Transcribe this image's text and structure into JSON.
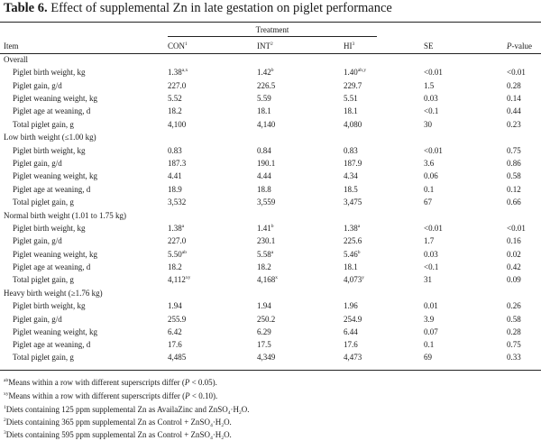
{
  "title": {
    "bold": "Table 6.",
    "text": " Effect of supplemental Zn in late gestation on piglet performance"
  },
  "header": {
    "treatment": "Treatment",
    "item": "Item",
    "con": "CON",
    "con_sup": "1",
    "int": "INT",
    "int_sup": "2",
    "hi": "HI",
    "hi_sup": "3",
    "se": "SE",
    "p_italic": "P",
    "p_rest": "-value"
  },
  "sections": [
    {
      "label": "Overall",
      "rows": [
        {
          "item": "Piglet birth weight, kg",
          "con": "1.38",
          "con_s": "a,x",
          "int": "1.42",
          "int_s": "b",
          "hi": "1.40",
          "hi_s": "ab,y",
          "se": "<0.01",
          "p": "<0.01"
        },
        {
          "item": "Piglet gain, g/d",
          "con": "227.0",
          "con_s": "",
          "int": "226.5",
          "int_s": "",
          "hi": "229.7",
          "hi_s": "",
          "se": "1.5",
          "p": "0.28"
        },
        {
          "item": "Piglet weaning weight, kg",
          "con": "5.52",
          "con_s": "",
          "int": "5.59",
          "int_s": "",
          "hi": "5.51",
          "hi_s": "",
          "se": "0.03",
          "p": "0.14"
        },
        {
          "item": "Piglet age at weaning, d",
          "con": "18.2",
          "con_s": "",
          "int": "18.1",
          "int_s": "",
          "hi": "18.1",
          "hi_s": "",
          "se": "<0.1",
          "p": "0.44"
        },
        {
          "item": "Total piglet gain, g",
          "con": "4,100",
          "con_s": "",
          "int": "4,140",
          "int_s": "",
          "hi": "4,080",
          "hi_s": "",
          "se": "30",
          "p": "0.23"
        }
      ]
    },
    {
      "label": "Low birth weight (≤1.00 kg)",
      "rows": [
        {
          "item": "Piglet birth weight, kg",
          "con": "0.83",
          "con_s": "",
          "int": "0.84",
          "int_s": "",
          "hi": "0.83",
          "hi_s": "",
          "se": "<0.01",
          "p": "0.75"
        },
        {
          "item": "Piglet gain, g/d",
          "con": "187.3",
          "con_s": "",
          "int": "190.1",
          "int_s": "",
          "hi": "187.9",
          "hi_s": "",
          "se": "3.6",
          "p": "0.86"
        },
        {
          "item": "Piglet weaning weight, kg",
          "con": "4.41",
          "con_s": "",
          "int": "4.44",
          "int_s": "",
          "hi": "4.34",
          "hi_s": "",
          "se": "0.06",
          "p": "0.58"
        },
        {
          "item": "Piglet age at weaning, d",
          "con": "18.9",
          "con_s": "",
          "int": "18.8",
          "int_s": "",
          "hi": "18.5",
          "hi_s": "",
          "se": "0.1",
          "p": "0.12"
        },
        {
          "item": "Total piglet gain, g",
          "con": "3,532",
          "con_s": "",
          "int": "3,559",
          "int_s": "",
          "hi": "3,475",
          "hi_s": "",
          "se": "67",
          "p": "0.66"
        }
      ]
    },
    {
      "label": "Normal birth weight (1.01 to 1.75 kg)",
      "rows": [
        {
          "item": "Piglet birth weight, kg",
          "con": "1.38",
          "con_s": "a",
          "int": "1.41",
          "int_s": "b",
          "hi": "1.38",
          "hi_s": "a",
          "se": "<0.01",
          "p": "<0.01"
        },
        {
          "item": "Piglet gain, g/d",
          "con": "227.0",
          "con_s": "",
          "int": "230.1",
          "int_s": "",
          "hi": "225.6",
          "hi_s": "",
          "se": "1.7",
          "p": "0.16"
        },
        {
          "item": "Piglet weaning weight, kg",
          "con": "5.50",
          "con_s": "ab",
          "int": "5.58",
          "int_s": "a",
          "hi": "5.46",
          "hi_s": "b",
          "se": "0.03",
          "p": "0.02"
        },
        {
          "item": "Piglet age at weaning, d",
          "con": "18.2",
          "con_s": "",
          "int": "18.2",
          "int_s": "",
          "hi": "18.1",
          "hi_s": "",
          "se": "<0.1",
          "p": "0.42"
        },
        {
          "item": "Total piglet gain, g",
          "con": "4,112",
          "con_s": "xy",
          "int": "4,168",
          "int_s": "x",
          "hi": "4,073",
          "hi_s": "y",
          "se": "31",
          "p": "0.09"
        }
      ]
    },
    {
      "label": "Heavy birth weight (≥1.76 kg)",
      "rows": [
        {
          "item": "Piglet birth weight, kg",
          "con": "1.94",
          "con_s": "",
          "int": "1.94",
          "int_s": "",
          "hi": "1.96",
          "hi_s": "",
          "se": "0.01",
          "p": "0.26"
        },
        {
          "item": "Piglet gain, g/d",
          "con": "255.9",
          "con_s": "",
          "int": "250.2",
          "int_s": "",
          "hi": "254.9",
          "hi_s": "",
          "se": "3.9",
          "p": "0.58"
        },
        {
          "item": "Piglet weaning weight, kg",
          "con": "6.42",
          "con_s": "",
          "int": "6.29",
          "int_s": "",
          "hi": "6.44",
          "hi_s": "",
          "se": "0.07",
          "p": "0.28"
        },
        {
          "item": "Piglet age at weaning, d",
          "con": "17.6",
          "con_s": "",
          "int": "17.5",
          "int_s": "",
          "hi": "17.6",
          "hi_s": "",
          "se": "0.1",
          "p": "0.75"
        },
        {
          "item": "Total piglet gain, g",
          "con": "4,485",
          "con_s": "",
          "int": "4,349",
          "int_s": "",
          "hi": "4,473",
          "hi_s": "",
          "se": "69",
          "p": "0.33"
        }
      ]
    }
  ],
  "footnotes": {
    "f1": {
      "sup": "ab",
      "pre": "Means within a row with different superscripts differ (",
      "p": "P",
      "post": " < 0.05)."
    },
    "f2": {
      "sup": "xy",
      "pre": "Means within a row with different superscripts differ (",
      "p": "P",
      "post": " < 0.10)."
    },
    "f3": {
      "sup": "1",
      "pre": "Diets containing 125 ppm supplemental Zn as AvailaZinc and ZnSO",
      "sub": "4",
      "mid": "·H",
      "sub2": "2",
      "post": "O."
    },
    "f4": {
      "sup": "2",
      "pre": "Diets containing 365 ppm supplemental Zn as Control + ZnSO",
      "sub": "4",
      "mid": "·H",
      "sub2": "2",
      "post": "O."
    },
    "f5": {
      "sup": "3",
      "pre": "Diets containing 595 ppm supplemental Zn as Control + ZnSO",
      "sub": "4",
      "mid": "·H",
      "sub2": "2",
      "post": "O."
    }
  }
}
